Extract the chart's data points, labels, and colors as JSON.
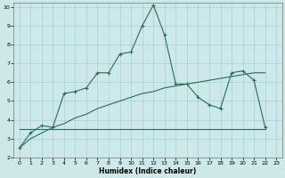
{
  "xlabel": "Humidex (Indice chaleur)",
  "bg_color": "#cce8e8",
  "grid_color": "#aacfcf",
  "line_color": "#2a6b5e",
  "xlim": [
    -0.5,
    23.5
  ],
  "ylim": [
    2,
    10.2
  ],
  "yticks": [
    2,
    3,
    4,
    5,
    6,
    7,
    8,
    9,
    10
  ],
  "xticks": [
    0,
    1,
    2,
    3,
    4,
    5,
    6,
    7,
    8,
    9,
    10,
    11,
    12,
    13,
    14,
    15,
    16,
    17,
    18,
    19,
    20,
    21,
    22,
    23
  ],
  "line1_x": [
    0,
    1,
    2,
    3,
    4,
    5,
    6,
    7,
    8,
    9,
    10,
    11,
    12,
    13,
    14,
    15,
    16,
    17,
    18,
    19,
    20,
    21,
    22
  ],
  "line1_y": [
    2.5,
    3.0,
    3.3,
    3.6,
    3.8,
    4.1,
    4.3,
    4.6,
    4.8,
    5.0,
    5.2,
    5.4,
    5.5,
    5.7,
    5.8,
    5.9,
    6.0,
    6.1,
    6.2,
    6.3,
    6.4,
    6.5,
    6.5
  ],
  "line2_x": [
    0,
    1,
    2,
    3,
    4,
    5,
    6,
    7,
    8,
    9,
    10,
    11,
    12,
    13,
    14,
    15,
    16,
    17,
    18,
    19,
    20,
    21,
    22
  ],
  "line2_y": [
    3.5,
    3.5,
    3.5,
    3.5,
    3.5,
    3.5,
    3.5,
    3.5,
    3.5,
    3.5,
    3.5,
    3.5,
    3.5,
    3.5,
    3.5,
    3.5,
    3.5,
    3.5,
    3.5,
    3.5,
    3.5,
    3.5,
    3.5
  ],
  "line3_x": [
    0,
    1,
    2,
    3,
    4,
    5,
    6,
    7,
    8,
    9,
    10,
    11,
    12,
    13,
    14,
    15,
    16,
    17,
    18,
    19,
    20,
    21,
    22
  ],
  "line3_y": [
    2.5,
    3.3,
    3.7,
    3.6,
    5.4,
    5.5,
    5.7,
    6.5,
    6.5,
    7.5,
    7.6,
    9.0,
    10.1,
    8.5,
    5.9,
    5.9,
    5.2,
    4.8,
    4.6,
    6.5,
    6.6,
    6.1,
    3.6
  ]
}
